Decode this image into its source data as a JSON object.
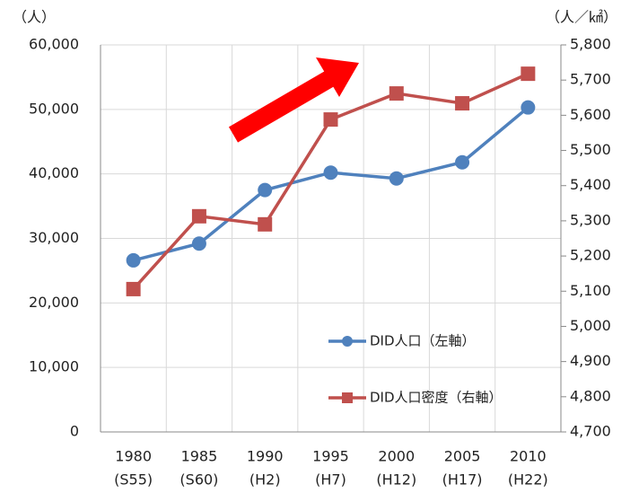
{
  "chart_data": {
    "type": "line",
    "y_unit": "（人）",
    "y2_unit": "（人／㎢）",
    "categories": [
      [
        "1980",
        "(S55)"
      ],
      [
        "1985",
        "(S60)"
      ],
      [
        "1990",
        "(H2)"
      ],
      [
        "1995",
        "(H7)"
      ],
      [
        "2000",
        "(H12)"
      ],
      [
        "2005",
        "(H17)"
      ],
      [
        "2010",
        "(H22)"
      ]
    ],
    "series": [
      {
        "name": "DID人口（左軸）",
        "color": "#4f81bd",
        "marker": "circle",
        "values": [
          26600,
          29200,
          37500,
          40200,
          39300,
          41800,
          50300
        ]
      },
      {
        "name": "DID人口密度（右軸）",
        "color": "#c0504d",
        "marker": "square",
        "axis": "y2",
        "values": [
          5106,
          5313,
          5290,
          5588,
          5662,
          5634,
          5718
        ]
      }
    ],
    "ylim": [
      0,
      60000
    ],
    "yticks": [
      0,
      {
        "value": 10000,
        "label": "10,000"
      },
      {
        "value": 20000,
        "label": "20,000"
      },
      {
        "value": 30000,
        "label": "30,000"
      },
      {
        "value": 40000,
        "label": "40,000"
      },
      {
        "value": 50000,
        "label": "50,000"
      },
      {
        "value": 60000,
        "label": "60,000"
      }
    ],
    "y2lim": [
      4700,
      5800
    ],
    "y2ticks": [
      {
        "value": 4700,
        "label": "4,700"
      },
      {
        "value": 4800,
        "label": "4,800"
      },
      {
        "value": 4900,
        "label": "4,900"
      },
      {
        "value": 5000,
        "label": "5,000"
      },
      {
        "value": 5100,
        "label": "5,100"
      },
      {
        "value": 5200,
        "label": "5,200"
      },
      {
        "value": 5300,
        "label": "5,300"
      },
      {
        "value": 5400,
        "label": "5,400"
      },
      {
        "value": 5500,
        "label": "5,500"
      },
      {
        "value": 5600,
        "label": "5,600"
      },
      {
        "value": 5700,
        "label": "5,700"
      },
      {
        "value": 5800,
        "label": "5,800"
      }
    ],
    "grid": true
  }
}
